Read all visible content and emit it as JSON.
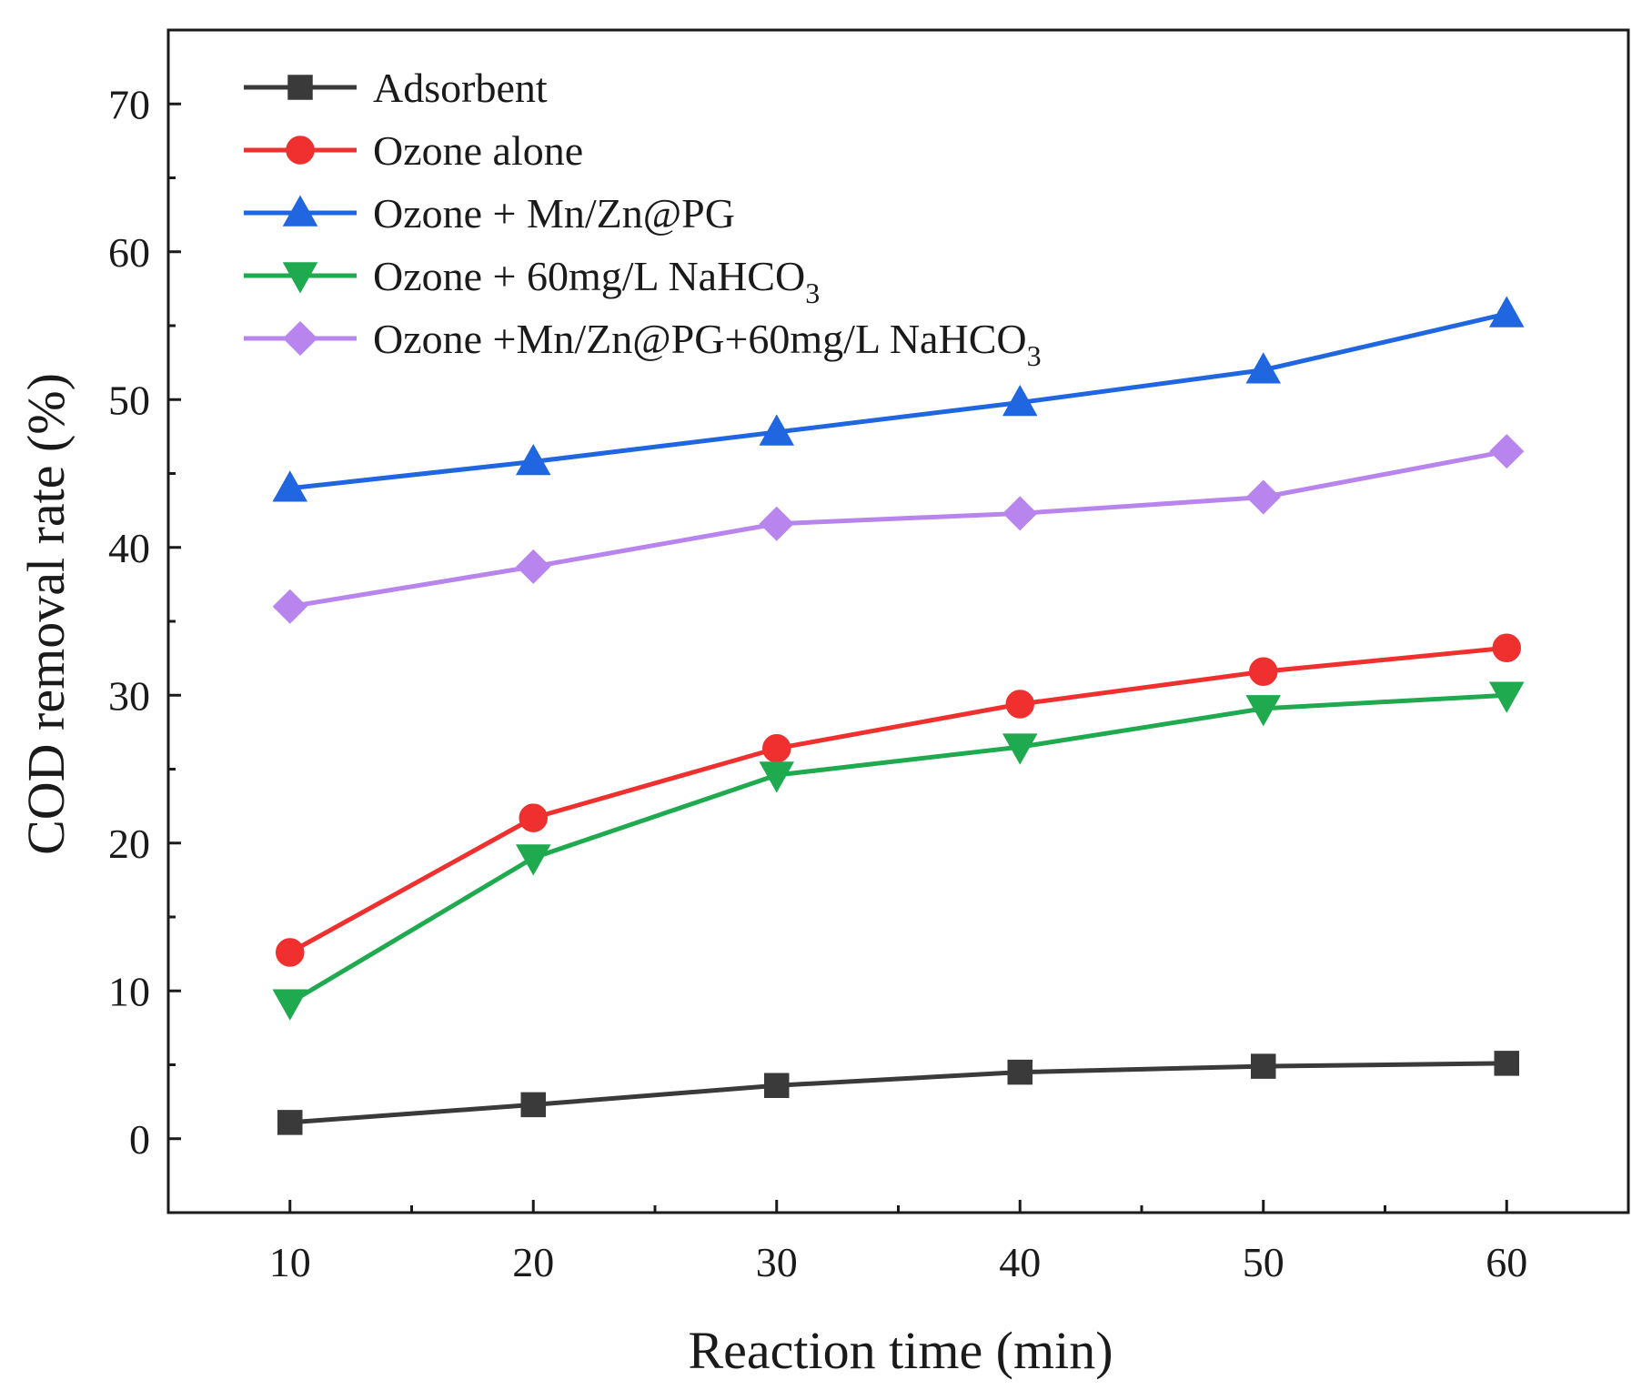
{
  "chart_data": {
    "type": "line",
    "title": "",
    "xlabel": "Reaction time (min)",
    "ylabel": "COD removal rate (%)",
    "xlim": [
      5,
      65
    ],
    "ylim": [
      -5,
      75
    ],
    "x": [
      10,
      20,
      30,
      40,
      50,
      60
    ],
    "xticks": [
      10,
      20,
      30,
      40,
      50,
      60
    ],
    "yticks": [
      0,
      10,
      20,
      30,
      40,
      50,
      60,
      70
    ],
    "legend_position": "top-left",
    "grid": false,
    "series": [
      {
        "name": "Adsorbent",
        "name_main": "Adsorbent",
        "name_sub": "",
        "color": "#3a3a3a",
        "marker": "square",
        "values": [
          1.1,
          2.3,
          3.6,
          4.5,
          4.9,
          5.1
        ]
      },
      {
        "name": "Ozone alone",
        "name_main": "Ozone alone",
        "name_sub": "",
        "color": "#f0302e",
        "marker": "circle",
        "values": [
          12.6,
          21.7,
          26.4,
          29.4,
          31.6,
          33.2
        ]
      },
      {
        "name": "Ozone + Mn/Zn@PG",
        "name_main": "Ozone + Mn/Zn@PG",
        "name_sub": "",
        "color": "#1f66e0",
        "marker": "triangle-up",
        "values": [
          44.0,
          45.8,
          47.8,
          49.8,
          52.0,
          55.8
        ]
      },
      {
        "name": "Ozone + 60mg/L NaHCO3",
        "name_main": "Ozone + 60mg/L NaHCO",
        "name_sub": "3",
        "color": "#1faa4f",
        "marker": "triangle-down",
        "values": [
          9.2,
          19.0,
          24.6,
          26.5,
          29.1,
          30.0
        ]
      },
      {
        "name": "Ozone +Mn/Zn@PG+60mg/L NaHCO3",
        "name_main": "Ozone +Mn/Zn@PG+60mg/L NaHCO",
        "name_sub": "3",
        "color": "#b884ee",
        "marker": "diamond",
        "values": [
          36.0,
          38.7,
          41.6,
          42.3,
          43.4,
          46.5
        ]
      }
    ]
  }
}
